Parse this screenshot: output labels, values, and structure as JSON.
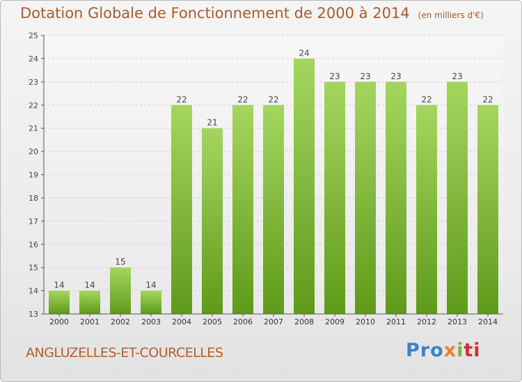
{
  "title": "Dotation Globale de Fonctionnement de 2000 à 2014",
  "unit_note": "(en milliers d'€)",
  "commune": "ANGLUZELLES-ET-COURCELLES",
  "logo": {
    "p1": "Pro",
    "p2": "x",
    "p3": "i",
    "p4": "ti"
  },
  "colors": {
    "bar_top": "#a4d65e",
    "bar_bottom": "#5f9a1a",
    "title": "#ad5a2b",
    "grid": "#cfcfcf"
  },
  "chart_data": {
    "type": "bar",
    "title": "Dotation Globale de Fonctionnement de 2000 à 2014",
    "subtitle": "(en milliers d'€)",
    "xlabel": "",
    "ylabel": "",
    "categories": [
      "2000",
      "2001",
      "2002",
      "2003",
      "2004",
      "2005",
      "2006",
      "2007",
      "2008",
      "2009",
      "2010",
      "2011",
      "2012",
      "2013",
      "2014"
    ],
    "values": [
      14,
      14,
      15,
      14,
      22,
      21,
      22,
      22,
      24,
      23,
      23,
      23,
      22,
      23,
      22
    ],
    "ylim": [
      13,
      25
    ],
    "yticks": [
      13,
      14,
      15,
      16,
      17,
      18,
      19,
      20,
      21,
      22,
      23,
      24,
      25
    ],
    "grid": true
  }
}
